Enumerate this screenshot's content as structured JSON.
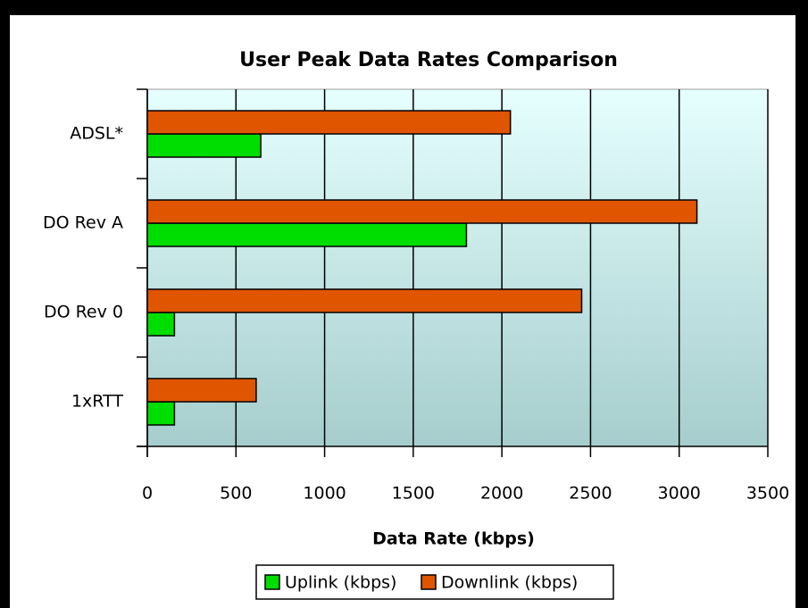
{
  "chart_data": {
    "type": "hbar",
    "title": "User Peak Data Rates Comparison",
    "x_label": "Data Rate (kbps)",
    "categories": [
      "ADSL*",
      "DO Rev A",
      "DO Rev 0",
      "1xRTT"
    ],
    "series": [
      {
        "name": "Uplink (kbps)",
        "color": "#00dd00",
        "values": [
          640,
          1800,
          153,
          153
        ]
      },
      {
        "name": "Downlink (kbps)",
        "color": "#e05500",
        "values": [
          2048,
          3100,
          2450,
          614
        ]
      }
    ],
    "xlim": [
      0,
      3500
    ],
    "xticks": [
      0,
      500,
      1000,
      1500,
      2000,
      2500,
      3000,
      3500
    ],
    "grid": true,
    "legend": "bottom"
  }
}
